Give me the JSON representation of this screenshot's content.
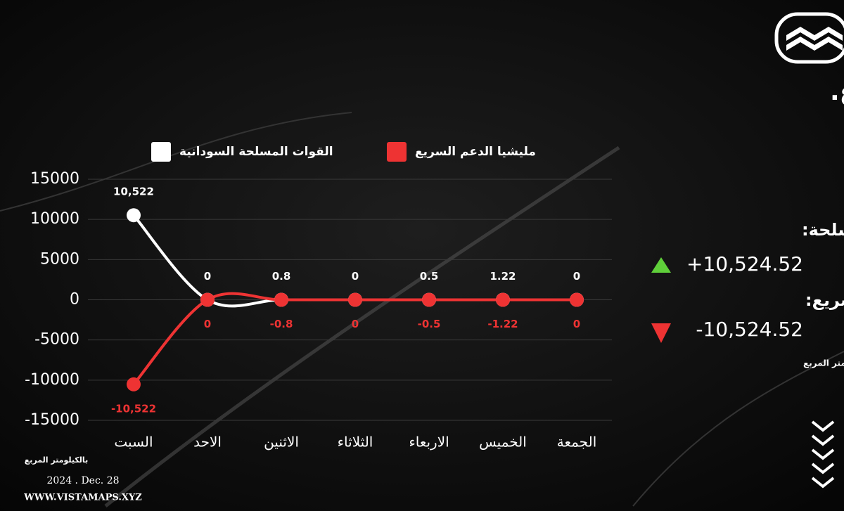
{
  "chart_data": {
    "type": "line",
    "title": "حجم المساحة التي اكتسبتها او فقدتها كل القوات هذا الإسبوع.",
    "y_axis_label": "بالكيلومتر المربع",
    "categories": [
      "السبت",
      "الاحد",
      "الاثنين",
      "الثلاثاء",
      "الاربعاء",
      "الخميس",
      "الجمعة"
    ],
    "series": [
      {
        "name": "القوات المسلحة السودانية",
        "color": "#ffffff",
        "values": [
          10522,
          0,
          0.8,
          0,
          0.5,
          1.22,
          0
        ],
        "value_labels": [
          "10,522",
          "0",
          "0.8",
          "0",
          "0.5",
          "1.22",
          "0"
        ]
      },
      {
        "name": "مليشيا الدعم السريع",
        "color": "#ee3333",
        "values": [
          -10522,
          0,
          -0.8,
          0,
          -0.5,
          -1.22,
          0
        ],
        "value_labels": [
          "-10,522",
          "0",
          "-0.8",
          "0",
          "-0.5",
          "-1.22",
          "0"
        ]
      }
    ],
    "ylim": [
      -15000,
      15000
    ],
    "yticks": [
      15000,
      10000,
      5000,
      0,
      -5000,
      -10000,
      -15000
    ],
    "grid": true
  },
  "summary": {
    "army_label": "القوات المسلحة:",
    "army_value": "+10,524.52",
    "rsf_label": "مليشيا الدعم السريع:",
    "rsf_value": "-10,524.52",
    "unit": "بالكيلومتر المربع"
  },
  "footer": {
    "date": "2024 . Dec. 28",
    "website": "WWW.VISTAMAPS.XYZ"
  }
}
